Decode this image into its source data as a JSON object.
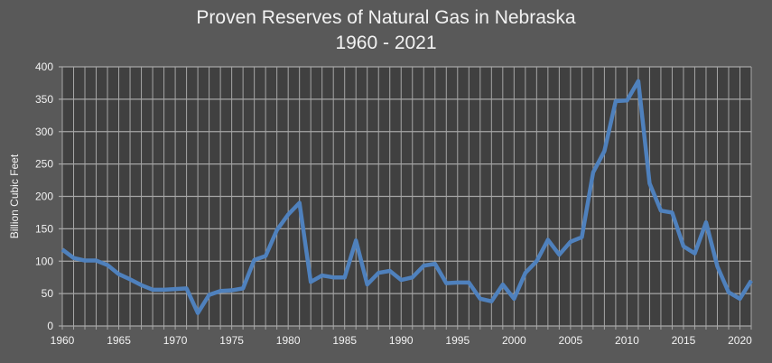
{
  "chart_data": {
    "type": "line",
    "title": "Proven Reserves of Natural Gas in Nebraska",
    "subtitle": "1960 - 2021",
    "xlabel": "",
    "ylabel": "Billion Cubic Feet",
    "xlim": [
      1960,
      2021
    ],
    "ylim": [
      0,
      400
    ],
    "yticks": [
      0,
      50,
      100,
      150,
      200,
      250,
      300,
      350,
      400
    ],
    "xticks": [
      1960,
      1965,
      1970,
      1975,
      1980,
      1985,
      1990,
      1995,
      2000,
      2005,
      2010,
      2015,
      2020
    ],
    "grid": true,
    "colors": {
      "line": "#4f81bd",
      "plot_bg": "#404040",
      "page_bg": "#595959",
      "grid": "#a6a6a6",
      "text": "#f2f2f2"
    },
    "x": [
      1960,
      1961,
      1962,
      1963,
      1964,
      1965,
      1966,
      1967,
      1968,
      1969,
      1970,
      1971,
      1972,
      1973,
      1974,
      1975,
      1976,
      1977,
      1978,
      1979,
      1980,
      1981,
      1982,
      1983,
      1984,
      1985,
      1986,
      1987,
      1988,
      1989,
      1990,
      1991,
      1992,
      1993,
      1994,
      1995,
      1996,
      1997,
      1998,
      1999,
      2000,
      2001,
      2002,
      2003,
      2004,
      2005,
      2006,
      2007,
      2008,
      2009,
      2010,
      2011,
      2012,
      2013,
      2014,
      2015,
      2016,
      2017,
      2018,
      2019,
      2020,
      2021
    ],
    "series": [
      {
        "name": "Nebraska",
        "values": [
          118,
          105,
          101,
          101,
          94,
          80,
          72,
          63,
          56,
          56,
          57,
          58,
          20,
          48,
          54,
          55,
          58,
          102,
          108,
          148,
          172,
          190,
          68,
          78,
          75,
          75,
          132,
          64,
          82,
          85,
          71,
          75,
          93,
          96,
          66,
          67,
          67,
          42,
          38,
          64,
          42,
          82,
          100,
          133,
          110,
          130,
          137,
          237,
          270,
          347,
          348,
          378,
          220,
          178,
          175,
          123,
          112,
          160,
          92,
          52,
          42,
          70
        ]
      }
    ]
  }
}
